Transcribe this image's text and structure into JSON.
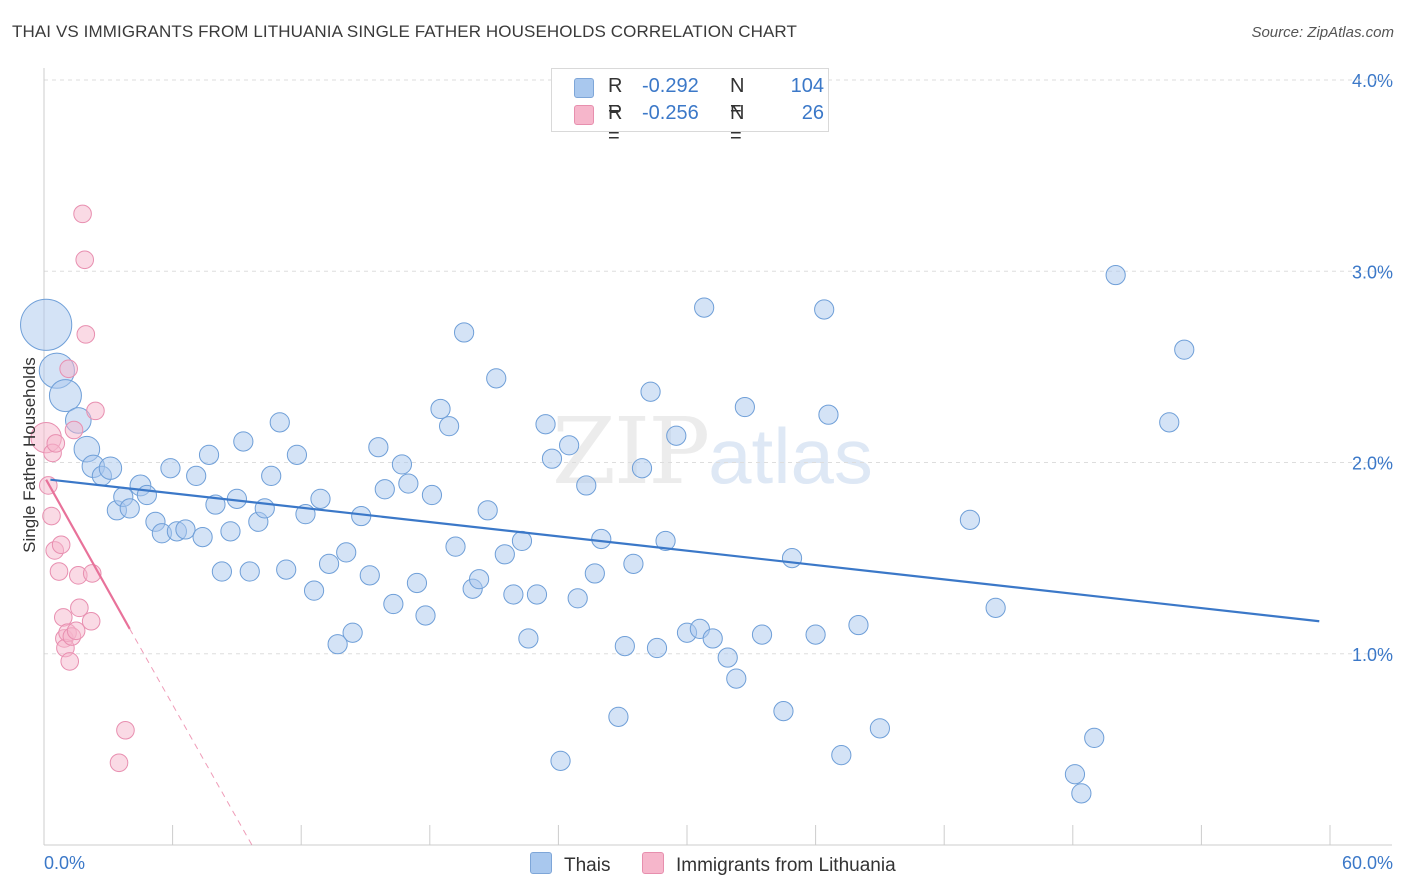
{
  "title": "THAI VS IMMIGRANTS FROM LITHUANIA SINGLE FATHER HOUSEHOLDS CORRELATION CHART",
  "source": "Source: ZipAtlas.com",
  "watermark": {
    "zip": "ZIP",
    "atlas": "atlas"
  },
  "legend": {
    "rows": [
      {
        "r_label": "R =",
        "r_value": "-0.292",
        "n_label": "N =",
        "n_value": "104",
        "color": "#a9c8ee"
      },
      {
        "r_label": "R =",
        "r_value": "-0.256",
        "n_label": "N =",
        "n_value": "26",
        "color": "#f6b6cb"
      }
    ]
  },
  "bottom_legend": [
    {
      "label": "Thais",
      "color": "#a9c8ee"
    },
    {
      "label": "Immigrants from Lithuania",
      "color": "#f6b6cb"
    }
  ],
  "chart_data": {
    "type": "scatter",
    "title": "THAI VS IMMIGRANTS FROM LITHUANIA SINGLE FATHER HOUSEHOLDS CORRELATION CHART",
    "ylabel": "Single Father Households",
    "xlim": [
      0,
      60
    ],
    "ylim": [
      0,
      4.0
    ],
    "x_tick_labels": [
      "0.0%",
      "60.0%"
    ],
    "y_ticks": [
      1.0,
      2.0,
      3.0,
      4.0
    ],
    "y_tick_labels": [
      "1.0%",
      "2.0%",
      "3.0%",
      "4.0%"
    ],
    "grid": "horizontal dashed",
    "series": [
      {
        "name": "Thais",
        "color": "#3b78c8",
        "fill": "#a9c8ee",
        "trend": {
          "x0": 0.3,
          "y0": 1.91,
          "x1": 59.5,
          "y1": 1.17
        },
        "points": [
          [
            0.1,
            2.72,
            3.2
          ],
          [
            0.6,
            2.48,
            2.2
          ],
          [
            1.0,
            2.35,
            2.0
          ],
          [
            1.6,
            2.22,
            1.6
          ],
          [
            2.0,
            2.07,
            1.6
          ],
          [
            2.3,
            1.98,
            1.4
          ],
          [
            2.7,
            1.93,
            1.2
          ],
          [
            3.1,
            1.97,
            1.4
          ],
          [
            3.4,
            1.75,
            1.2
          ],
          [
            3.7,
            1.82,
            1.2
          ],
          [
            4.0,
            1.76,
            1.2
          ],
          [
            4.5,
            1.88,
            1.3
          ],
          [
            4.8,
            1.83,
            1.2
          ],
          [
            5.2,
            1.69,
            1.2
          ],
          [
            5.5,
            1.63,
            1.2
          ],
          [
            5.9,
            1.97,
            1.2
          ],
          [
            6.2,
            1.64,
            1.2
          ],
          [
            6.6,
            1.65,
            1.2
          ],
          [
            7.1,
            1.93,
            1.2
          ],
          [
            7.4,
            1.61,
            1.2
          ],
          [
            7.7,
            2.04,
            1.2
          ],
          [
            8.0,
            1.78,
            1.2
          ],
          [
            8.3,
            1.43,
            1.2
          ],
          [
            8.7,
            1.64,
            1.2
          ],
          [
            9.0,
            1.81,
            1.2
          ],
          [
            9.3,
            2.11,
            1.2
          ],
          [
            9.6,
            1.43,
            1.2
          ],
          [
            10.0,
            1.69,
            1.2
          ],
          [
            10.3,
            1.76,
            1.2
          ],
          [
            10.6,
            1.93,
            1.2
          ],
          [
            11.0,
            2.21,
            1.2
          ],
          [
            11.3,
            1.44,
            1.2
          ],
          [
            11.8,
            2.04,
            1.2
          ],
          [
            12.2,
            1.73,
            1.2
          ],
          [
            12.6,
            1.33,
            1.2
          ],
          [
            12.9,
            1.81,
            1.2
          ],
          [
            13.3,
            1.47,
            1.2
          ],
          [
            13.7,
            1.05,
            1.2
          ],
          [
            14.1,
            1.53,
            1.2
          ],
          [
            14.4,
            1.11,
            1.2
          ],
          [
            14.8,
            1.72,
            1.2
          ],
          [
            15.2,
            1.41,
            1.2
          ],
          [
            15.6,
            2.08,
            1.2
          ],
          [
            15.9,
            1.86,
            1.2
          ],
          [
            16.3,
            1.26,
            1.2
          ],
          [
            16.7,
            1.99,
            1.2
          ],
          [
            17.0,
            1.89,
            1.2
          ],
          [
            17.4,
            1.37,
            1.2
          ],
          [
            17.8,
            1.2,
            1.2
          ],
          [
            18.1,
            1.83,
            1.2
          ],
          [
            18.5,
            2.28,
            1.2
          ],
          [
            18.9,
            2.19,
            1.2
          ],
          [
            19.2,
            1.56,
            1.2
          ],
          [
            19.6,
            2.68,
            1.2
          ],
          [
            20.0,
            1.34,
            1.2
          ],
          [
            20.3,
            1.39,
            1.2
          ],
          [
            20.7,
            1.75,
            1.2
          ],
          [
            21.1,
            2.44,
            1.2
          ],
          [
            21.5,
            1.52,
            1.2
          ],
          [
            21.9,
            1.31,
            1.2
          ],
          [
            22.3,
            1.59,
            1.2
          ],
          [
            22.6,
            1.08,
            1.2
          ],
          [
            23.0,
            1.31,
            1.2
          ],
          [
            23.4,
            2.2,
            1.2
          ],
          [
            23.7,
            2.02,
            1.2
          ],
          [
            24.1,
            0.44,
            1.2
          ],
          [
            24.5,
            2.09,
            1.2
          ],
          [
            24.9,
            1.29,
            1.2
          ],
          [
            25.3,
            1.88,
            1.2
          ],
          [
            25.7,
            1.42,
            1.2
          ],
          [
            26.0,
            1.6,
            1.2
          ],
          [
            26.8,
            0.67,
            1.2
          ],
          [
            27.1,
            1.04,
            1.2
          ],
          [
            27.5,
            1.47,
            1.2
          ],
          [
            27.9,
            1.97,
            1.2
          ],
          [
            28.3,
            2.37,
            1.2
          ],
          [
            28.6,
            1.03,
            1.2
          ],
          [
            29.0,
            1.59,
            1.2
          ],
          [
            29.5,
            2.14,
            1.2
          ],
          [
            30.0,
            1.11,
            1.2
          ],
          [
            30.6,
            1.13,
            1.2
          ],
          [
            30.8,
            2.81,
            1.2
          ],
          [
            31.2,
            1.08,
            1.2
          ],
          [
            31.9,
            0.98,
            1.2
          ],
          [
            32.3,
            0.87,
            1.2
          ],
          [
            32.7,
            2.29,
            1.2
          ],
          [
            33.5,
            1.1,
            1.2
          ],
          [
            34.5,
            0.7,
            1.2
          ],
          [
            34.9,
            1.5,
            1.2
          ],
          [
            36.0,
            1.1,
            1.2
          ],
          [
            36.4,
            2.8,
            1.2
          ],
          [
            36.6,
            2.25,
            1.2
          ],
          [
            37.2,
            0.47,
            1.2
          ],
          [
            38.0,
            1.15,
            1.2
          ],
          [
            39.0,
            0.61,
            1.2
          ],
          [
            43.2,
            1.7,
            1.2
          ],
          [
            44.4,
            1.24,
            1.2
          ],
          [
            48.1,
            0.37,
            1.2
          ],
          [
            48.4,
            0.27,
            1.2
          ],
          [
            49.0,
            0.56,
            1.2
          ],
          [
            50.0,
            2.98,
            1.2
          ],
          [
            52.5,
            2.21,
            1.2
          ],
          [
            53.2,
            2.59,
            1.2
          ]
        ]
      },
      {
        "name": "Immigrants from Lithuania",
        "color": "#e8729a",
        "fill": "#f6b6cb",
        "trend": {
          "x0": 0.1,
          "y0": 1.91,
          "x1": 4.0,
          "y1": 1.13
        },
        "trend_extension": {
          "x0": 4.0,
          "y0": 1.13,
          "x1": 9.7,
          "y1": 0.0
        },
        "points": [
          [
            0.1,
            2.13,
            1.9
          ],
          [
            0.2,
            1.88,
            1.1
          ],
          [
            0.35,
            1.72,
            1.1
          ],
          [
            0.4,
            2.05,
            1.1
          ],
          [
            0.5,
            1.54,
            1.1
          ],
          [
            0.55,
            2.1,
            1.1
          ],
          [
            0.7,
            1.43,
            1.1
          ],
          [
            0.8,
            1.57,
            1.1
          ],
          [
            0.9,
            1.19,
            1.1
          ],
          [
            0.95,
            1.08,
            1.1
          ],
          [
            1.0,
            1.03,
            1.1
          ],
          [
            1.1,
            1.11,
            1.1
          ],
          [
            1.15,
            2.49,
            1.1
          ],
          [
            1.2,
            0.96,
            1.1
          ],
          [
            1.3,
            1.09,
            1.1
          ],
          [
            1.4,
            2.17,
            1.1
          ],
          [
            1.5,
            1.12,
            1.1
          ],
          [
            1.6,
            1.41,
            1.1
          ],
          [
            1.65,
            1.24,
            1.1
          ],
          [
            1.8,
            3.3,
            1.1
          ],
          [
            1.9,
            3.06,
            1.1
          ],
          [
            1.95,
            2.67,
            1.1
          ],
          [
            2.2,
            1.17,
            1.1
          ],
          [
            2.25,
            1.42,
            1.1
          ],
          [
            2.4,
            2.27,
            1.1
          ],
          [
            3.5,
            0.43,
            1.1
          ],
          [
            3.8,
            0.6,
            1.1
          ]
        ]
      }
    ]
  }
}
